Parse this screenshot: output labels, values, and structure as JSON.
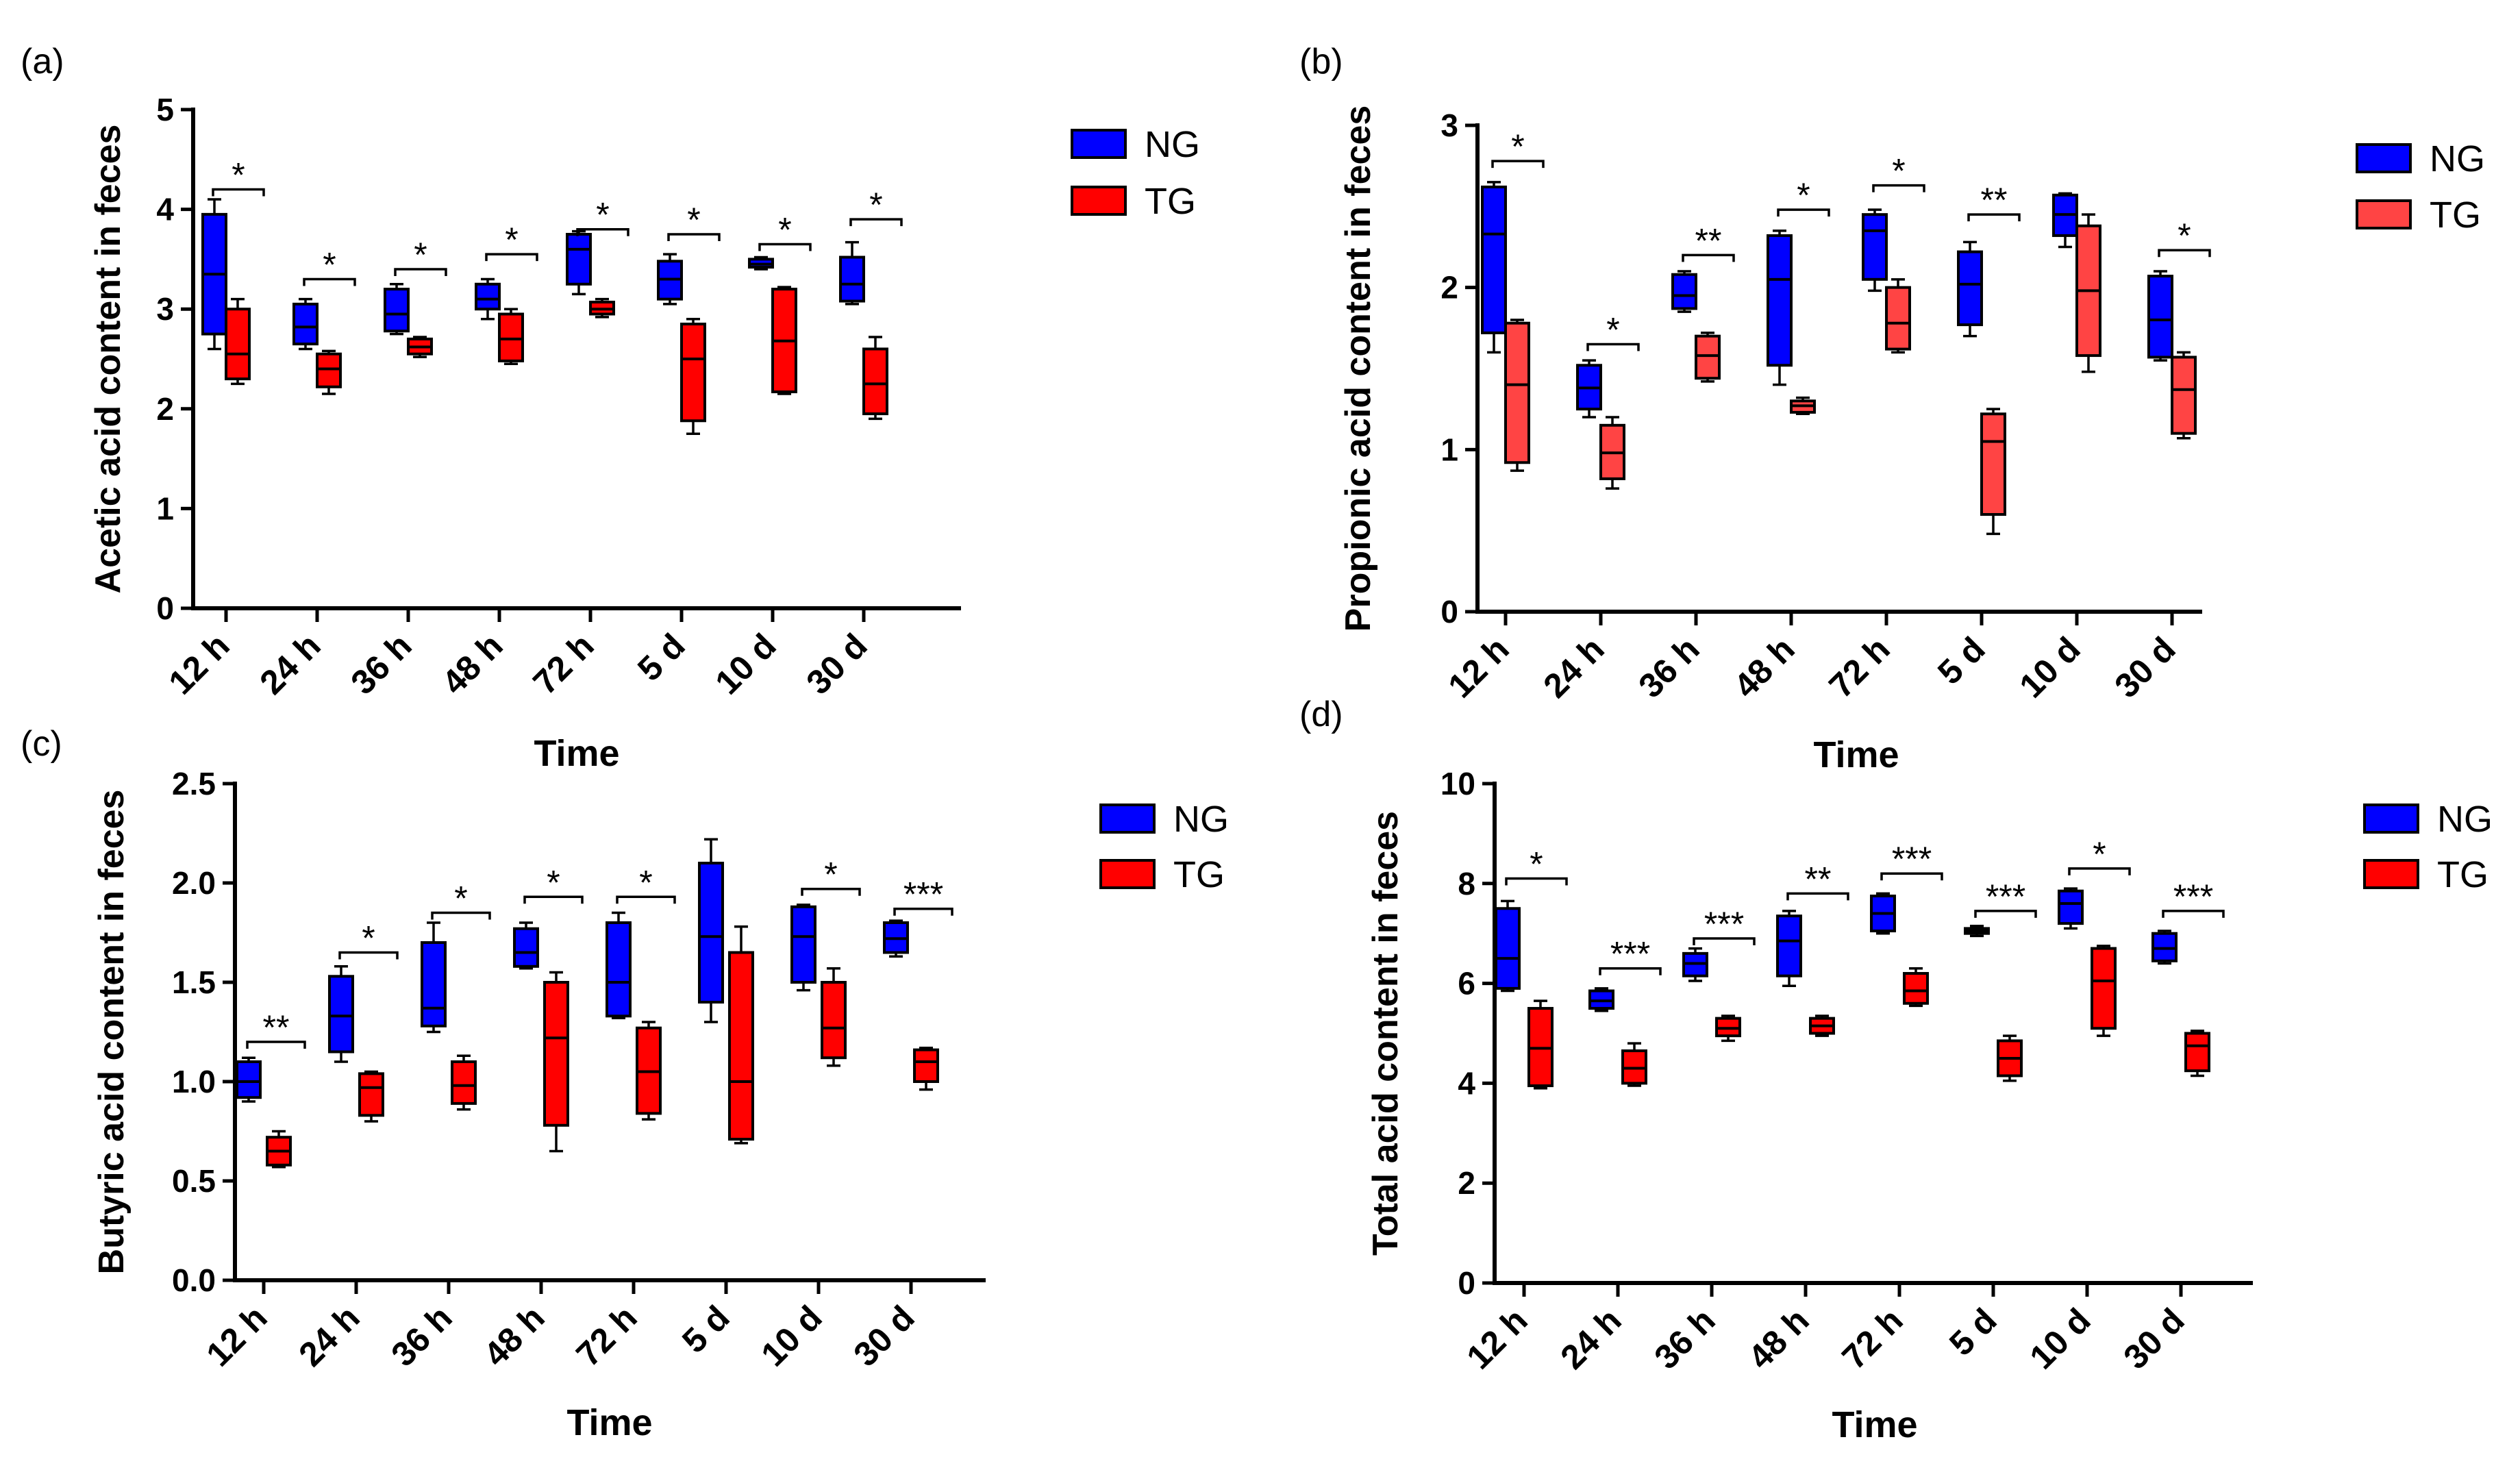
{
  "figure": {
    "colors": {
      "NG": "#0000ff",
      "TG": "#ff0000",
      "TG_light": "#ff4444"
    }
  },
  "chart_data": [
    {
      "panel": "(a)",
      "type": "box",
      "title": "",
      "xlabel": "Time",
      "ylabel": "Acetic acid content in feces",
      "ylim": [
        0,
        5
      ],
      "yticks": [
        0,
        1,
        2,
        3,
        4,
        5
      ],
      "ytick_labels": [
        "0",
        "1",
        "2",
        "3",
        "4",
        "5"
      ],
      "categories": [
        "12 h",
        "24 h",
        "36 h",
        "48 h",
        "72 h",
        "5 d",
        "10 d",
        "30 d"
      ],
      "legend": [
        "NG",
        "TG"
      ],
      "tg_color": "#ff0000",
      "series": [
        {
          "name": "NG",
          "boxes": [
            {
              "min": 2.6,
              "q1": 2.75,
              "median": 3.35,
              "q3": 3.95,
              "max": 4.1
            },
            {
              "min": 2.6,
              "q1": 2.65,
              "median": 2.82,
              "q3": 3.05,
              "max": 3.1
            },
            {
              "min": 2.75,
              "q1": 2.78,
              "median": 2.95,
              "q3": 3.2,
              "max": 3.25
            },
            {
              "min": 2.9,
              "q1": 3.0,
              "median": 3.1,
              "q3": 3.25,
              "max": 3.3
            },
            {
              "min": 3.15,
              "q1": 3.25,
              "median": 3.6,
              "q3": 3.75,
              "max": 3.78
            },
            {
              "min": 3.05,
              "q1": 3.1,
              "median": 3.3,
              "q3": 3.48,
              "max": 3.55
            },
            {
              "min": 3.4,
              "q1": 3.42,
              "median": 3.45,
              "q3": 3.5,
              "max": 3.52
            },
            {
              "min": 3.05,
              "q1": 3.08,
              "median": 3.25,
              "q3": 3.52,
              "max": 3.67
            }
          ]
        },
        {
          "name": "TG",
          "boxes": [
            {
              "min": 2.25,
              "q1": 2.3,
              "median": 2.55,
              "q3": 3.0,
              "max": 3.1
            },
            {
              "min": 2.15,
              "q1": 2.22,
              "median": 2.4,
              "q3": 2.55,
              "max": 2.58
            },
            {
              "min": 2.52,
              "q1": 2.55,
              "median": 2.62,
              "q3": 2.7,
              "max": 2.72
            },
            {
              "min": 2.45,
              "q1": 2.48,
              "median": 2.7,
              "q3": 2.95,
              "max": 3.0
            },
            {
              "min": 2.92,
              "q1": 2.95,
              "median": 3.0,
              "q3": 3.07,
              "max": 3.1
            },
            {
              "min": 1.75,
              "q1": 1.88,
              "median": 2.5,
              "q3": 2.85,
              "max": 2.9
            },
            {
              "min": 2.15,
              "q1": 2.17,
              "median": 2.68,
              "q3": 3.2,
              "max": 3.22
            },
            {
              "min": 1.9,
              "q1": 1.95,
              "median": 2.25,
              "q3": 2.6,
              "max": 2.72
            }
          ]
        }
      ],
      "significance": [
        {
          "label": "*",
          "y": 4.2
        },
        {
          "label": "*",
          "y": 3.3
        },
        {
          "label": "*",
          "y": 3.4
        },
        {
          "label": "*",
          "y": 3.55
        },
        {
          "label": "*",
          "y": 3.8
        },
        {
          "label": "*",
          "y": 3.75
        },
        {
          "label": "*",
          "y": 3.65
        },
        {
          "label": "*",
          "y": 3.9
        }
      ]
    },
    {
      "panel": "(b)",
      "type": "box",
      "title": "",
      "xlabel": "Time",
      "ylabel": "Propionic acid content in feces",
      "ylim": [
        0,
        3
      ],
      "yticks": [
        0,
        1,
        2,
        3
      ],
      "ytick_labels": [
        "0",
        "1",
        "2",
        "3"
      ],
      "categories": [
        "12 h",
        "24 h",
        "36 h",
        "48 h",
        "72 h",
        "5 d",
        "10 d",
        "30 d"
      ],
      "legend": [
        "NG",
        "TG"
      ],
      "tg_color": "#ff4444",
      "series": [
        {
          "name": "NG",
          "boxes": [
            {
              "min": 1.6,
              "q1": 1.72,
              "median": 2.33,
              "q3": 2.62,
              "max": 2.65
            },
            {
              "min": 1.2,
              "q1": 1.25,
              "median": 1.38,
              "q3": 1.52,
              "max": 1.55
            },
            {
              "min": 1.85,
              "q1": 1.87,
              "median": 1.95,
              "q3": 2.08,
              "max": 2.1
            },
            {
              "min": 1.4,
              "q1": 1.52,
              "median": 2.05,
              "q3": 2.32,
              "max": 2.35
            },
            {
              "min": 1.98,
              "q1": 2.05,
              "median": 2.35,
              "q3": 2.45,
              "max": 2.48
            },
            {
              "min": 1.7,
              "q1": 1.77,
              "median": 2.02,
              "q3": 2.22,
              "max": 2.28
            },
            {
              "min": 2.25,
              "q1": 2.32,
              "median": 2.45,
              "q3": 2.57,
              "max": 2.58
            },
            {
              "min": 1.55,
              "q1": 1.57,
              "median": 1.8,
              "q3": 2.07,
              "max": 2.1
            }
          ]
        },
        {
          "name": "TG",
          "boxes": [
            {
              "min": 0.87,
              "q1": 0.92,
              "median": 1.4,
              "q3": 1.78,
              "max": 1.8
            },
            {
              "min": 0.76,
              "q1": 0.82,
              "median": 0.98,
              "q3": 1.15,
              "max": 1.2
            },
            {
              "min": 1.42,
              "q1": 1.44,
              "median": 1.58,
              "q3": 1.7,
              "max": 1.72
            },
            {
              "min": 1.22,
              "q1": 1.23,
              "median": 1.27,
              "q3": 1.3,
              "max": 1.32
            },
            {
              "min": 1.6,
              "q1": 1.62,
              "median": 1.78,
              "q3": 2.0,
              "max": 2.05
            },
            {
              "min": 0.48,
              "q1": 0.6,
              "median": 1.05,
              "q3": 1.22,
              "max": 1.25
            },
            {
              "min": 1.48,
              "q1": 1.58,
              "median": 1.98,
              "q3": 2.38,
              "max": 2.45
            },
            {
              "min": 1.07,
              "q1": 1.1,
              "median": 1.37,
              "q3": 1.57,
              "max": 1.6
            }
          ]
        }
      ],
      "significance": [
        {
          "label": "*",
          "y": 2.78
        },
        {
          "label": "*",
          "y": 1.65
        },
        {
          "label": "**",
          "y": 2.2
        },
        {
          "label": "*",
          "y": 2.48
        },
        {
          "label": "*",
          "y": 2.63
        },
        {
          "label": "**",
          "y": 2.45
        },
        {
          "label": "",
          "y": null
        },
        {
          "label": "*",
          "y": 2.23
        }
      ]
    },
    {
      "panel": "(c)",
      "type": "box",
      "title": "",
      "xlabel": "Time",
      "ylabel": "Butyric acid content in feces",
      "ylim": [
        0,
        2.5
      ],
      "yticks": [
        0,
        0.5,
        1.0,
        1.5,
        2.0,
        2.5
      ],
      "ytick_labels": [
        "0.0",
        "0.5",
        "1.0",
        "1.5",
        "2.0",
        "2.5"
      ],
      "categories": [
        "12 h",
        "24 h",
        "36 h",
        "48 h",
        "72 h",
        "5 d",
        "10 d",
        "30 d"
      ],
      "legend": [
        "NG",
        "TG"
      ],
      "tg_color": "#ff0000",
      "series": [
        {
          "name": "NG",
          "boxes": [
            {
              "min": 0.9,
              "q1": 0.92,
              "median": 1.0,
              "q3": 1.1,
              "max": 1.12
            },
            {
              "min": 1.1,
              "q1": 1.15,
              "median": 1.33,
              "q3": 1.53,
              "max": 1.58
            },
            {
              "min": 1.25,
              "q1": 1.28,
              "median": 1.37,
              "q3": 1.7,
              "max": 1.8
            },
            {
              "min": 1.57,
              "q1": 1.58,
              "median": 1.65,
              "q3": 1.77,
              "max": 1.8
            },
            {
              "min": 1.32,
              "q1": 1.33,
              "median": 1.5,
              "q3": 1.8,
              "max": 1.85
            },
            {
              "min": 1.3,
              "q1": 1.4,
              "median": 1.73,
              "q3": 2.1,
              "max": 2.22
            },
            {
              "min": 1.46,
              "q1": 1.5,
              "median": 1.73,
              "q3": 1.88,
              "max": 1.89
            },
            {
              "min": 1.63,
              "q1": 1.65,
              "median": 1.72,
              "q3": 1.8,
              "max": 1.81
            }
          ]
        },
        {
          "name": "TG",
          "boxes": [
            {
              "min": 0.57,
              "q1": 0.58,
              "median": 0.65,
              "q3": 0.72,
              "max": 0.75
            },
            {
              "min": 0.8,
              "q1": 0.83,
              "median": 0.97,
              "q3": 1.04,
              "max": 1.05
            },
            {
              "min": 0.86,
              "q1": 0.89,
              "median": 0.98,
              "q3": 1.1,
              "max": 1.13
            },
            {
              "min": 0.65,
              "q1": 0.78,
              "median": 1.22,
              "q3": 1.5,
              "max": 1.55
            },
            {
              "min": 0.81,
              "q1": 0.84,
              "median": 1.05,
              "q3": 1.27,
              "max": 1.3
            },
            {
              "min": 0.69,
              "q1": 0.71,
              "median": 1.0,
              "q3": 1.65,
              "max": 1.78
            },
            {
              "min": 1.08,
              "q1": 1.12,
              "median": 1.27,
              "q3": 1.5,
              "max": 1.57
            },
            {
              "min": 0.96,
              "q1": 1.0,
              "median": 1.1,
              "q3": 1.16,
              "max": 1.17
            }
          ]
        }
      ],
      "significance": [
        {
          "label": "**",
          "y": 1.2
        },
        {
          "label": "*",
          "y": 1.65
        },
        {
          "label": "*",
          "y": 1.85
        },
        {
          "label": "*",
          "y": 1.93
        },
        {
          "label": "*",
          "y": 1.93
        },
        {
          "label": "",
          "y": null
        },
        {
          "label": "*",
          "y": 1.97
        },
        {
          "label": "***",
          "y": 1.87
        }
      ]
    },
    {
      "panel": "(d)",
      "type": "box",
      "title": "",
      "xlabel": "Time",
      "ylabel": "Total acid content in feces",
      "ylim": [
        0,
        10
      ],
      "yticks": [
        0,
        2,
        4,
        6,
        8,
        10
      ],
      "ytick_labels": [
        "0",
        "2",
        "4",
        "6",
        "8",
        "10"
      ],
      "categories": [
        "12 h",
        "24 h",
        "36 h",
        "48 h",
        "72 h",
        "5 d",
        "10 d",
        "30 d"
      ],
      "legend": [
        "NG",
        "TG"
      ],
      "tg_color": "#ff0000",
      "series": [
        {
          "name": "NG",
          "boxes": [
            {
              "min": 5.85,
              "q1": 5.9,
              "median": 6.5,
              "q3": 7.5,
              "max": 7.65
            },
            {
              "min": 5.45,
              "q1": 5.5,
              "median": 5.65,
              "q3": 5.85,
              "max": 5.9
            },
            {
              "min": 6.05,
              "q1": 6.15,
              "median": 6.4,
              "q3": 6.6,
              "max": 6.7
            },
            {
              "min": 5.95,
              "q1": 6.15,
              "median": 6.85,
              "q3": 7.35,
              "max": 7.45
            },
            {
              "min": 7.0,
              "q1": 7.05,
              "median": 7.4,
              "q3": 7.75,
              "max": 7.8
            },
            {
              "min": 6.95,
              "q1": 7.0,
              "median": 7.05,
              "q3": 7.1,
              "max": 7.15
            },
            {
              "min": 7.1,
              "q1": 7.2,
              "median": 7.6,
              "q3": 7.85,
              "max": 7.9
            },
            {
              "min": 6.4,
              "q1": 6.45,
              "median": 6.7,
              "q3": 7.0,
              "max": 7.05
            }
          ]
        },
        {
          "name": "TG",
          "boxes": [
            {
              "min": 3.9,
              "q1": 3.95,
              "median": 4.7,
              "q3": 5.5,
              "max": 5.65
            },
            {
              "min": 3.95,
              "q1": 4.0,
              "median": 4.3,
              "q3": 4.65,
              "max": 4.8
            },
            {
              "min": 4.85,
              "q1": 4.95,
              "median": 5.1,
              "q3": 5.3,
              "max": 5.35
            },
            {
              "min": 4.95,
              "q1": 5.0,
              "median": 5.15,
              "q3": 5.3,
              "max": 5.35
            },
            {
              "min": 5.55,
              "q1": 5.6,
              "median": 5.85,
              "q3": 6.2,
              "max": 6.3
            },
            {
              "min": 4.05,
              "q1": 4.15,
              "median": 4.5,
              "q3": 4.85,
              "max": 4.95
            },
            {
              "min": 4.95,
              "q1": 5.1,
              "median": 6.05,
              "q3": 6.7,
              "max": 6.75
            },
            {
              "min": 4.15,
              "q1": 4.25,
              "median": 4.75,
              "q3": 5.0,
              "max": 5.05
            }
          ]
        }
      ],
      "significance": [
        {
          "label": "*",
          "y": 8.1
        },
        {
          "label": "***",
          "y": 6.3
        },
        {
          "label": "***",
          "y": 6.9
        },
        {
          "label": "**",
          "y": 7.8
        },
        {
          "label": "***",
          "y": 8.2
        },
        {
          "label": "***",
          "y": 7.45
        },
        {
          "label": "*",
          "y": 8.3
        },
        {
          "label": "***",
          "y": 7.45
        }
      ]
    }
  ]
}
